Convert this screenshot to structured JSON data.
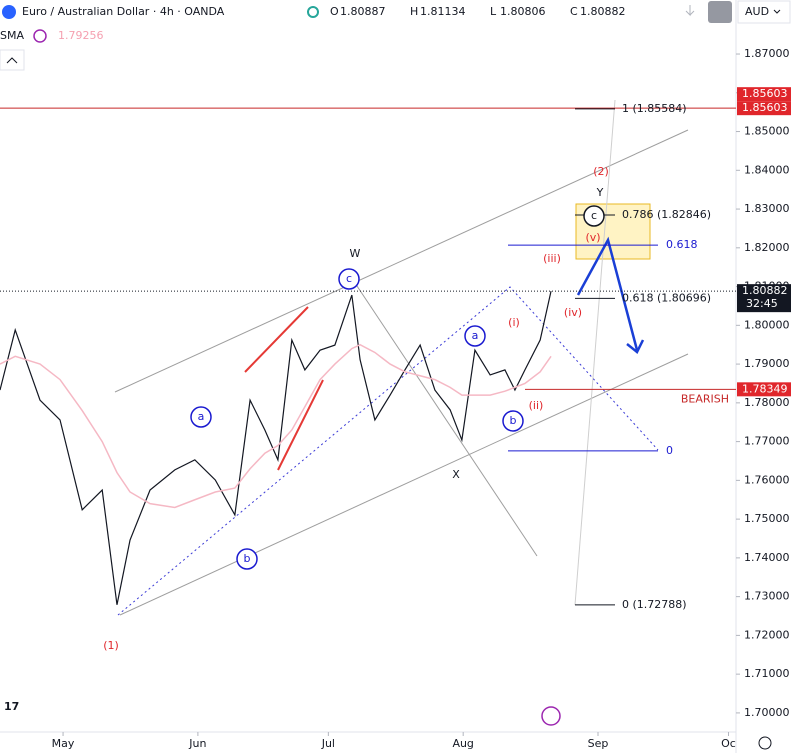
{
  "header": {
    "symbol": "Euro / Australian Dollar · 4h · OANDA",
    "ohlc": [
      {
        "label": "O",
        "value": 1.80887
      },
      {
        "label": "H",
        "value": 1.81134
      },
      {
        "label": "L",
        "value": 1.80806
      },
      {
        "label": "C",
        "value": 1.80882
      }
    ],
    "indicator_value": 1.79256,
    "currency": "AUD"
  },
  "chart_data": {
    "type": "line",
    "x": [
      -14.5,
      -11,
      -5.3,
      -0.7,
      4.4,
      9.0,
      12.4,
      15.4,
      20,
      25.7,
      30.3,
      35,
      39.5,
      43,
      46.4,
      49.4,
      52.6,
      55.6,
      59.1,
      62.5,
      66.4,
      68.3,
      71.7,
      75.2,
      78.6,
      82.1,
      85.5,
      89,
      91.7,
      94.7,
      98.2,
      101.6,
      103.9,
      106.2,
      109.7,
      112.2
    ],
    "series": [
      {
        "color": "#131722",
        "values": [
          1.7833,
          1.7988,
          1.7807,
          1.7756,
          1.7524,
          1.7575,
          1.7279,
          1.7446,
          1.7575,
          1.7627,
          1.7653,
          1.7601,
          1.7511,
          1.7807,
          1.773,
          1.7653,
          1.7962,
          1.7885,
          1.7936,
          1.7949,
          1.8078,
          1.7911,
          1.7756,
          1.782,
          1.7885,
          1.7949,
          1.7833,
          1.7782,
          1.7704,
          1.7936,
          1.7872,
          1.7885,
          1.7833,
          1.7885,
          1.7962,
          1.80882
        ]
      },
      {
        "name": "SMA",
        "color": "#f5b8c4",
        "values": [
          1.79,
          1.792,
          1.79,
          1.786,
          1.778,
          1.77,
          1.762,
          1.757,
          1.754,
          1.753,
          1.755,
          1.757,
          1.758,
          1.763,
          1.767,
          1.769,
          1.773,
          1.779,
          1.786,
          1.79,
          1.794,
          1.795,
          1.793,
          1.79,
          1.788,
          1.787,
          1.786,
          1.784,
          1.782,
          1.782,
          1.782,
          1.783,
          1.784,
          1.785,
          1.788,
          1.792
        ]
      }
    ],
    "xlim": [
      -14.5,
      154.5
    ],
    "xticks": [
      {
        "value": 0,
        "label": "May"
      },
      {
        "value": 31,
        "label": "Jun"
      },
      {
        "value": 61,
        "label": "Jul"
      },
      {
        "value": 92,
        "label": "Aug"
      },
      {
        "value": 123,
        "label": "Sep"
      },
      {
        "value": 153,
        "label": "Oc"
      }
    ],
    "ylim": [
      1.6943,
      1.8762
    ],
    "yticks": [
      {
        "value": 1.7,
        "label": "1.70000"
      },
      {
        "value": 1.71,
        "label": "1.71000"
      },
      {
        "value": 1.72,
        "label": "1.72000"
      },
      {
        "value": 1.73,
        "label": "1.73000"
      },
      {
        "value": 1.74,
        "label": "1.74000"
      },
      {
        "value": 1.75,
        "label": "1.75000"
      },
      {
        "value": 1.76,
        "label": "1.76000"
      },
      {
        "value": 1.77,
        "label": "1.77000"
      },
      {
        "value": 1.78,
        "label": "1.78000"
      },
      {
        "value": 1.79,
        "label": "1.79000"
      },
      {
        "value": 1.8,
        "label": "1.80000"
      },
      {
        "value": 1.81,
        "label": "1.81000"
      },
      {
        "value": 1.82,
        "label": "1.82000"
      },
      {
        "value": 1.83,
        "label": "1.83000"
      },
      {
        "value": 1.84,
        "label": "1.84000"
      },
      {
        "value": 1.85,
        "label": "1.85000"
      },
      {
        "value": 1.86,
        "label": "1.86000"
      },
      {
        "value": 1.87,
        "label": "1.87000"
      }
    ],
    "price_tags": [
      {
        "value": 1.85603,
        "color": "#e0262b"
      },
      {
        "value": 1.85603,
        "color": "#e0262b"
      },
      {
        "value": 1.80882,
        "color": "#131722",
        "countdown": "32:45"
      },
      {
        "value": 1.78349,
        "color": "#e0262b"
      }
    ],
    "levels": [
      {
        "value": 1.85603,
        "color": "#c62828"
      },
      {
        "value": 1.78349,
        "color": "#c62828",
        "label": "BEARISH"
      }
    ],
    "fib_black": [
      {
        "value": 1.85584,
        "label": "1 (1.85584)"
      },
      {
        "value": 1.82846,
        "label": "0.786 (1.82846)"
      },
      {
        "value": 1.80696,
        "label": "0.618 (1.80696)"
      },
      {
        "value": 1.72788,
        "label": "0 (1.72788)"
      }
    ],
    "fib_blue": [
      {
        "value": 1.8207,
        "label": "0.618"
      },
      {
        "value": 1.7676,
        "label": "0"
      }
    ],
    "annotations": [
      {
        "text": "W",
        "color": "#131722"
      },
      {
        "text": "c",
        "color": "#1a1ad0",
        "circled": true
      },
      {
        "text": "X",
        "color": "#131722"
      },
      {
        "text": "Y",
        "color": "#131722"
      },
      {
        "text": "(2)",
        "color": "#e0262b"
      },
      {
        "text": "c",
        "color": "#131722",
        "circled": true
      },
      {
        "text": "(v)",
        "color": "#e0262b"
      },
      {
        "text": "(iii)",
        "color": "#e0262b"
      },
      {
        "text": "(iv)",
        "color": "#e0262b"
      },
      {
        "text": "(i)",
        "color": "#e0262b"
      },
      {
        "text": "(ii)",
        "color": "#e0262b"
      },
      {
        "text": "a",
        "color": "#1a1ad0",
        "circled": true
      },
      {
        "text": "b",
        "color": "#1a1ad0",
        "circled": true
      },
      {
        "text": "a",
        "color": "#1a1ad0",
        "circled": true
      },
      {
        "text": "b",
        "color": "#1a1ad0",
        "circled": true
      },
      {
        "text": "(1)",
        "color": "#e0262b"
      }
    ]
  }
}
